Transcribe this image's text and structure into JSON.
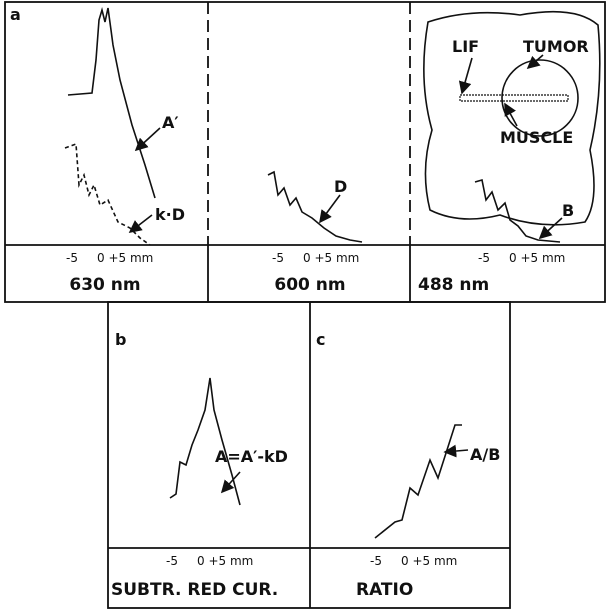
{
  "panels": [
    {
      "label": "a",
      "ticks": [
        "-5",
        "0 +5 mm"
      ],
      "caption": "630 nm",
      "annotations": [
        "A′",
        "k·D"
      ]
    },
    {
      "ticks": [
        "-5",
        "0 +5 mm"
      ],
      "caption": "600 nm",
      "annotations": [
        "D"
      ]
    },
    {
      "ticks": [
        "-5",
        "0 +5 mm"
      ],
      "caption": "488 nm",
      "annotations": [
        "B"
      ],
      "inset": [
        "LIF",
        "TUMOR",
        "MUSCLE"
      ]
    },
    {
      "label": "b",
      "ticks": [
        "-5",
        "0 +5 mm"
      ],
      "caption": "SUBTR. RED CUR.",
      "annotations": [
        "A=A′-kD"
      ]
    },
    {
      "label": "c",
      "ticks": [
        "-5",
        "0 +5 mm"
      ],
      "caption": "RATIO",
      "annotations": [
        "A/B"
      ]
    }
  ]
}
